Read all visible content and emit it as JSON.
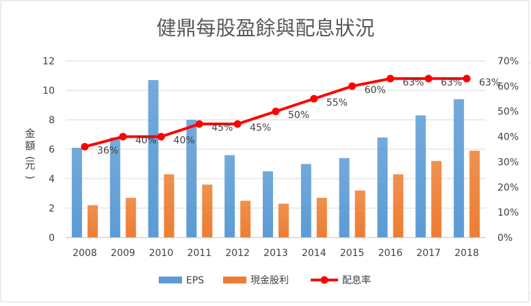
{
  "chart_data": {
    "type": "bar",
    "title": "健鼎每股盈餘與配息狀況",
    "ylabel": "金額(元)",
    "categories": [
      "2008",
      "2009",
      "2010",
      "2011",
      "2012",
      "2013",
      "2014",
      "2015",
      "2016",
      "2017",
      "2018"
    ],
    "series": [
      {
        "name": "EPS",
        "type": "bar",
        "axis": "left",
        "color": "#5b9bd5",
        "values": [
          6.1,
          6.8,
          10.7,
          8.0,
          5.6,
          4.5,
          5.0,
          5.4,
          6.8,
          8.3,
          9.4
        ]
      },
      {
        "name": "現金股利",
        "type": "bar",
        "axis": "left",
        "color": "#ed7d31",
        "values": [
          2.2,
          2.7,
          4.3,
          3.6,
          2.5,
          2.3,
          2.7,
          3.2,
          4.3,
          5.2,
          5.9
        ]
      },
      {
        "name": "配息率",
        "type": "line",
        "axis": "right",
        "color": "#ff0000",
        "values": [
          36,
          40,
          40,
          45,
          45,
          50,
          55,
          60,
          63,
          63,
          63
        ],
        "labels": [
          "36%",
          "40%",
          "40%",
          "45%",
          "45%",
          "50%",
          "55%",
          "60%",
          "63%",
          "63%",
          "63%"
        ]
      }
    ],
    "y_left": {
      "min": 0,
      "max": 12,
      "ticks": [
        "0",
        "2",
        "4",
        "6",
        "8",
        "10",
        "12"
      ]
    },
    "y_right": {
      "min": 0,
      "max": 70,
      "ticks": [
        "0%",
        "10%",
        "20%",
        "30%",
        "40%",
        "50%",
        "60%",
        "70%"
      ]
    },
    "legend": "bottom",
    "grid": true
  }
}
